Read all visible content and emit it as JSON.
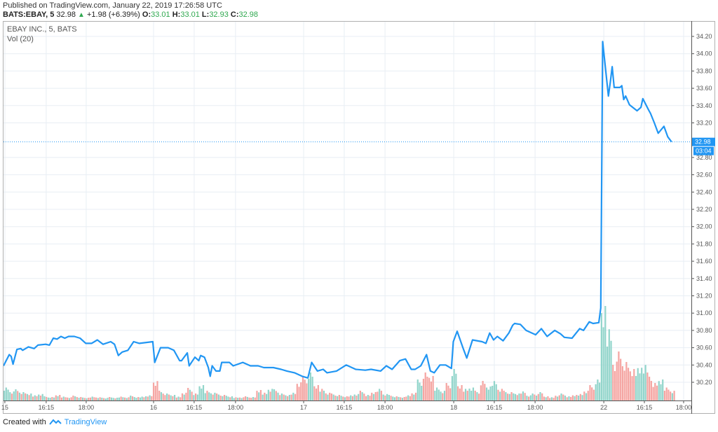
{
  "header": {
    "published": "Published on TradingView.com, January 22, 2019 17:26:58 UTC",
    "symbol": "BATS:EBAY, 5",
    "last": "32.98",
    "change": "+1.98 (+6.39%)",
    "o_label": "O:",
    "o": "33.01",
    "h_label": "H:",
    "h": "33.01",
    "l_label": "L:",
    "l": "32.93",
    "c_label": "C:",
    "c": "32.98"
  },
  "legend": {
    "series": "EBAY INC., 5, BATS",
    "volume": "Vol (20)"
  },
  "footer": {
    "created_with": "Created with",
    "brand": "TradingView"
  },
  "colors": {
    "line": "#2196f3",
    "vol_up": "#92d5cb",
    "vol_down": "#f5a5a2",
    "grid": "#e8eef4",
    "up_text": "#2fa84f"
  },
  "chart_data": {
    "type": "line",
    "title": "EBAY INC., 5, BATS",
    "x_unit": "5-minute bar index",
    "ylim": [
      30.1,
      34.3
    ],
    "current_price": "32.98",
    "countdown": "03:04",
    "y_ticks": [
      "34.20",
      "34.00",
      "33.80",
      "33.60",
      "33.40",
      "33.20",
      "32.80",
      "32.60",
      "32.40",
      "32.20",
      "32.00",
      "31.80",
      "31.60",
      "31.40",
      "31.20",
      "31.00",
      "30.80",
      "30.60",
      "30.40",
      "30.20"
    ],
    "x_ticks": [
      {
        "label": "15",
        "bar": 0.7
      },
      {
        "label": "16:15",
        "bar": 22.3
      },
      {
        "label": "18:00",
        "bar": 43.2
      },
      {
        "label": "16",
        "bar": 78.4
      },
      {
        "label": "16:15",
        "bar": 99.6
      },
      {
        "label": "18:00",
        "bar": 121.2
      },
      {
        "label": "17",
        "bar": 156.8
      },
      {
        "label": "16:15",
        "bar": 178
      },
      {
        "label": "18:00",
        "bar": 199.3
      },
      {
        "label": "18",
        "bar": 235.2
      },
      {
        "label": "16:15",
        "bar": 256.4
      },
      {
        "label": "18:00",
        "bar": 277.7
      },
      {
        "label": "22",
        "bar": 313.6
      },
      {
        "label": "16:15",
        "bar": 334.8
      },
      {
        "label": "18:00",
        "bar": 355.3
      }
    ],
    "price": [
      [
        0,
        30.39
      ],
      [
        3,
        30.52
      ],
      [
        4,
        30.5
      ],
      [
        5,
        30.41
      ],
      [
        7,
        30.58
      ],
      [
        9,
        30.59
      ],
      [
        10,
        30.57
      ],
      [
        13,
        30.61
      ],
      [
        16,
        30.59
      ],
      [
        18,
        30.63
      ],
      [
        22,
        30.64
      ],
      [
        24,
        30.63
      ],
      [
        26,
        30.71
      ],
      [
        28,
        30.7
      ],
      [
        30,
        30.73
      ],
      [
        32,
        30.71
      ],
      [
        34,
        30.73
      ],
      [
        37,
        30.73
      ],
      [
        40,
        30.71
      ],
      [
        43,
        30.65
      ],
      [
        46,
        30.65
      ],
      [
        49,
        30.69
      ],
      [
        52,
        30.64
      ],
      [
        56,
        30.67
      ],
      [
        58,
        30.64
      ],
      [
        60,
        30.51
      ],
      [
        62,
        30.55
      ],
      [
        65,
        30.57
      ],
      [
        68,
        30.67
      ],
      [
        71,
        30.65
      ],
      [
        78,
        30.67
      ],
      [
        79,
        30.43
      ],
      [
        82,
        30.6
      ],
      [
        86,
        30.6
      ],
      [
        89,
        30.57
      ],
      [
        92,
        30.45
      ],
      [
        93,
        30.45
      ],
      [
        96,
        30.54
      ],
      [
        97,
        30.39
      ],
      [
        100,
        30.49
      ],
      [
        102,
        30.45
      ],
      [
        103,
        30.51
      ],
      [
        105,
        30.49
      ],
      [
        107,
        30.37
      ],
      [
        108,
        30.27
      ],
      [
        109,
        30.39
      ],
      [
        111,
        30.33
      ],
      [
        113,
        30.33
      ],
      [
        114,
        30.43
      ],
      [
        118,
        30.43
      ],
      [
        120,
        30.39
      ],
      [
        125,
        30.43
      ],
      [
        129,
        30.39
      ],
      [
        133,
        30.39
      ],
      [
        136,
        30.37
      ],
      [
        141,
        30.37
      ],
      [
        145,
        30.35
      ],
      [
        148,
        30.33
      ],
      [
        152,
        30.31
      ],
      [
        156,
        30.27
      ],
      [
        159,
        30.25
      ],
      [
        161,
        30.43
      ],
      [
        164,
        30.33
      ],
      [
        167,
        30.35
      ],
      [
        169,
        30.31
      ],
      [
        174,
        30.33
      ],
      [
        179,
        30.4
      ],
      [
        184,
        30.35
      ],
      [
        189,
        30.34
      ],
      [
        192,
        30.35
      ],
      [
        197,
        30.33
      ],
      [
        200,
        30.39
      ],
      [
        203,
        30.35
      ],
      [
        207,
        30.45
      ],
      [
        210,
        30.47
      ],
      [
        213,
        30.35
      ],
      [
        215,
        30.35
      ],
      [
        218,
        30.39
      ],
      [
        221,
        30.52
      ],
      [
        223,
        30.33
      ],
      [
        225,
        30.31
      ],
      [
        228,
        30.4
      ],
      [
        231,
        30.4
      ],
      [
        234,
        30.36
      ],
      [
        235,
        30.67
      ],
      [
        237,
        30.79
      ],
      [
        240,
        30.6
      ],
      [
        242,
        30.48
      ],
      [
        245,
        30.69
      ],
      [
        250,
        30.67
      ],
      [
        252,
        30.65
      ],
      [
        254,
        30.77
      ],
      [
        256,
        30.69
      ],
      [
        258,
        30.73
      ],
      [
        261,
        30.68
      ],
      [
        264,
        30.77
      ],
      [
        266,
        30.86
      ],
      [
        267,
        30.88
      ],
      [
        270,
        30.87
      ],
      [
        273,
        30.8
      ],
      [
        278,
        30.75
      ],
      [
        281,
        30.82
      ],
      [
        284,
        30.73
      ],
      [
        288,
        30.8
      ],
      [
        291,
        30.76
      ],
      [
        293,
        30.72
      ],
      [
        297,
        30.71
      ],
      [
        301,
        30.82
      ],
      [
        303,
        30.8
      ],
      [
        306,
        30.9
      ],
      [
        308,
        30.88
      ],
      [
        311,
        30.89
      ],
      [
        312,
        31.06
      ],
      [
        313,
        34.14
      ],
      [
        316,
        33.51
      ],
      [
        317,
        33.67
      ],
      [
        318,
        33.85
      ],
      [
        319,
        33.61
      ],
      [
        322,
        33.61
      ],
      [
        323,
        33.63
      ],
      [
        324,
        33.47
      ],
      [
        325,
        33.51
      ],
      [
        327,
        33.41
      ],
      [
        331,
        33.34
      ],
      [
        333,
        33.38
      ],
      [
        334,
        33.48
      ],
      [
        337,
        33.35
      ],
      [
        338,
        33.31
      ],
      [
        340,
        33.2
      ],
      [
        342,
        33.08
      ],
      [
        345,
        33.16
      ],
      [
        347,
        33.04
      ],
      [
        349,
        32.98
      ]
    ],
    "volume_step_bars": 3,
    "volume_relative": [
      20,
      14,
      16,
      12,
      10,
      8,
      10,
      6,
      5,
      8,
      6,
      5,
      7,
      5,
      4,
      6,
      5,
      4,
      5,
      4,
      6,
      5,
      7,
      5,
      6,
      8,
      30,
      14,
      10,
      8,
      6,
      12,
      18,
      10,
      22,
      15,
      12,
      10,
      8,
      6,
      5,
      5,
      6,
      5,
      15,
      12,
      18,
      16,
      10,
      8,
      12,
      28,
      35,
      40,
      22,
      18,
      12,
      10,
      8,
      6,
      8,
      10,
      14,
      8,
      12,
      18,
      10,
      8,
      6,
      5,
      8,
      12,
      30,
      40,
      35,
      20,
      15,
      25,
      45,
      22,
      18,
      20,
      14,
      28,
      20,
      30,
      18,
      14,
      12,
      10,
      14,
      8,
      10,
      12,
      6,
      5,
      8,
      10,
      6,
      8,
      10,
      15,
      22,
      30,
      135,
      110,
      60,
      70,
      55,
      45,
      50,
      55,
      40,
      25,
      30,
      20,
      15
    ]
  }
}
